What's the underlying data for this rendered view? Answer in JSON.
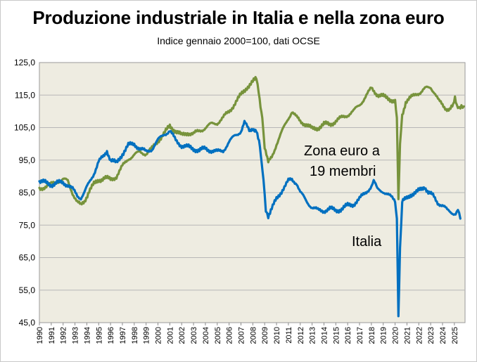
{
  "chart_data": {
    "type": "line",
    "title": "Produzione industriale in Italia e nella zona euro",
    "subtitle": "Indice gennaio 2000=100, dati OCSE",
    "xlabel": "",
    "ylabel": "",
    "x_ticks": [
      "1990",
      "1991",
      "1992",
      "1993",
      "1994",
      "1995",
      "1996",
      "1997",
      "1998",
      "1999",
      "2000",
      "2001",
      "2002",
      "2003",
      "2004",
      "2005",
      "2006",
      "2007",
      "2008",
      "2009",
      "2010",
      "2011",
      "2012",
      "2013",
      "2014",
      "2015",
      "2016",
      "2017",
      "2018",
      "2019",
      "2020",
      "2021",
      "2022",
      "2023",
      "2024",
      "2025"
    ],
    "xlim": [
      1990,
      2025.9
    ],
    "y_ticks": [
      "125,0",
      "115,0",
      "105,0",
      "95,0",
      "85,0",
      "75,0",
      "65,0",
      "55,0",
      "45,0"
    ],
    "ylim": [
      45,
      125
    ],
    "grid": true,
    "annotations": {
      "euro_line1": "Zona euro a",
      "euro_line2": "19 membri",
      "italia": "Italia"
    },
    "colors": {
      "plot_background": "#eeece1",
      "gridline": "#b7b7b7",
      "euro": "#77933c",
      "italia": "#0070c0"
    },
    "series": [
      {
        "name": "Zona euro a 19 membri",
        "points": [
          [
            1990.0,
            86
          ],
          [
            1990.5,
            87
          ],
          [
            1991.0,
            87.5
          ],
          [
            1991.5,
            88.5
          ],
          [
            1992.0,
            89
          ],
          [
            1992.4,
            88.5
          ],
          [
            1992.8,
            85
          ],
          [
            1993.2,
            82
          ],
          [
            1993.5,
            81
          ],
          [
            1993.8,
            82.5
          ],
          [
            1994.2,
            85.5
          ],
          [
            1994.6,
            87.5
          ],
          [
            1995.0,
            89
          ],
          [
            1995.5,
            89.5
          ],
          [
            1996.0,
            89
          ],
          [
            1996.5,
            90
          ],
          [
            1997.0,
            93
          ],
          [
            1997.5,
            95.5
          ],
          [
            1998.0,
            96.5
          ],
          [
            1998.5,
            97.5
          ],
          [
            1999.0,
            97
          ],
          [
            1999.5,
            98.5
          ],
          [
            2000.0,
            101
          ],
          [
            2000.5,
            103
          ],
          [
            2001.0,
            105.5
          ],
          [
            2001.5,
            104
          ],
          [
            2002.0,
            102.5
          ],
          [
            2002.5,
            103.5
          ],
          [
            2003.0,
            103
          ],
          [
            2003.5,
            104
          ],
          [
            2004.0,
            105
          ],
          [
            2004.5,
            106
          ],
          [
            2005.0,
            106.5
          ],
          [
            2005.5,
            108
          ],
          [
            2006.0,
            110
          ],
          [
            2006.5,
            112.5
          ],
          [
            2007.0,
            115
          ],
          [
            2007.5,
            117.5
          ],
          [
            2008.0,
            119
          ],
          [
            2008.3,
            120
          ],
          [
            2008.5,
            116
          ],
          [
            2008.8,
            108
          ],
          [
            2009.0,
            99
          ],
          [
            2009.3,
            94
          ],
          [
            2009.6,
            96
          ],
          [
            2010.0,
            100
          ],
          [
            2010.5,
            104
          ],
          [
            2011.0,
            108
          ],
          [
            2011.3,
            110
          ],
          [
            2011.7,
            108
          ],
          [
            2012.0,
            107
          ],
          [
            2012.5,
            106
          ],
          [
            2013.0,
            104.5
          ],
          [
            2013.5,
            105
          ],
          [
            2014.0,
            106
          ],
          [
            2014.5,
            106
          ],
          [
            2015.0,
            107
          ],
          [
            2015.5,
            108
          ],
          [
            2016.0,
            109
          ],
          [
            2016.5,
            110
          ],
          [
            2017.0,
            112
          ],
          [
            2017.5,
            114.5
          ],
          [
            2018.0,
            117
          ],
          [
            2018.3,
            116
          ],
          [
            2018.6,
            115
          ],
          [
            2019.0,
            114.5
          ],
          [
            2019.5,
            114
          ],
          [
            2020.0,
            113
          ],
          [
            2020.15,
            108
          ],
          [
            2020.28,
            83
          ],
          [
            2020.42,
            100
          ],
          [
            2020.6,
            109
          ],
          [
            2020.9,
            113
          ],
          [
            2021.3,
            114
          ],
          [
            2021.8,
            115.5
          ],
          [
            2022.2,
            116
          ],
          [
            2022.6,
            117
          ],
          [
            2023.0,
            117.5
          ],
          [
            2023.3,
            116
          ],
          [
            2023.7,
            113
          ],
          [
            2024.0,
            112
          ],
          [
            2024.3,
            111
          ],
          [
            2024.6,
            110.5
          ],
          [
            2024.9,
            111.5
          ],
          [
            2025.05,
            114
          ],
          [
            2025.2,
            112
          ],
          [
            2025.4,
            111.5
          ],
          [
            2025.6,
            112
          ],
          [
            2025.8,
            111.5
          ]
        ]
      },
      {
        "name": "Italia",
        "points": [
          [
            1990.0,
            88.5
          ],
          [
            1990.5,
            88
          ],
          [
            1991.0,
            87.5
          ],
          [
            1991.5,
            88
          ],
          [
            1992.0,
            88
          ],
          [
            1992.4,
            87.5
          ],
          [
            1992.8,
            86
          ],
          [
            1993.2,
            84
          ],
          [
            1993.5,
            83.5
          ],
          [
            1993.8,
            85
          ],
          [
            1994.2,
            88
          ],
          [
            1994.6,
            91
          ],
          [
            1995.0,
            94.5
          ],
          [
            1995.4,
            96
          ],
          [
            1995.7,
            98
          ],
          [
            1996.0,
            95
          ],
          [
            1996.5,
            94
          ],
          [
            1997.0,
            97
          ],
          [
            1997.5,
            99.5
          ],
          [
            1998.0,
            100
          ],
          [
            1998.5,
            98.5
          ],
          [
            1999.0,
            97.5
          ],
          [
            1999.5,
            98.5
          ],
          [
            2000.0,
            101
          ],
          [
            2000.5,
            103
          ],
          [
            2001.0,
            104
          ],
          [
            2001.5,
            101
          ],
          [
            2002.0,
            99.5
          ],
          [
            2002.5,
            99
          ],
          [
            2003.0,
            98.5
          ],
          [
            2003.5,
            98
          ],
          [
            2004.0,
            98.5
          ],
          [
            2004.5,
            98
          ],
          [
            2005.0,
            97.5
          ],
          [
            2005.5,
            98
          ],
          [
            2006.0,
            100.5
          ],
          [
            2006.5,
            102.5
          ],
          [
            2007.0,
            104
          ],
          [
            2007.3,
            106.5
          ],
          [
            2007.7,
            104
          ],
          [
            2008.0,
            105
          ],
          [
            2008.3,
            104
          ],
          [
            2008.6,
            99
          ],
          [
            2008.9,
            89
          ],
          [
            2009.1,
            80
          ],
          [
            2009.3,
            78
          ],
          [
            2009.6,
            80
          ],
          [
            2010.0,
            83
          ],
          [
            2010.5,
            86
          ],
          [
            2011.0,
            88.5
          ],
          [
            2011.3,
            89
          ],
          [
            2011.7,
            88
          ],
          [
            2012.0,
            85
          ],
          [
            2012.5,
            82.5
          ],
          [
            2013.0,
            80.5
          ],
          [
            2013.5,
            79.5
          ],
          [
            2014.0,
            79.5
          ],
          [
            2014.5,
            80
          ],
          [
            2015.0,
            79.5
          ],
          [
            2015.5,
            80
          ],
          [
            2016.0,
            81
          ],
          [
            2016.5,
            81.5
          ],
          [
            2017.0,
            83
          ],
          [
            2017.5,
            85
          ],
          [
            2018.0,
            87
          ],
          [
            2018.2,
            88.5
          ],
          [
            2018.5,
            86
          ],
          [
            2019.0,
            85.5
          ],
          [
            2019.5,
            84
          ],
          [
            2020.0,
            82.5
          ],
          [
            2020.15,
            77
          ],
          [
            2020.28,
            47
          ],
          [
            2020.42,
            68
          ],
          [
            2020.6,
            82
          ],
          [
            2020.9,
            83
          ],
          [
            2021.3,
            84.5
          ],
          [
            2021.8,
            85
          ],
          [
            2022.2,
            86
          ],
          [
            2022.5,
            87
          ],
          [
            2022.8,
            85
          ],
          [
            2023.2,
            84
          ],
          [
            2023.6,
            82
          ],
          [
            2024.0,
            81
          ],
          [
            2024.4,
            79.5
          ],
          [
            2024.8,
            79
          ],
          [
            2025.1,
            78.5
          ],
          [
            2025.3,
            79.5
          ],
          [
            2025.5,
            77
          ]
        ]
      }
    ]
  }
}
